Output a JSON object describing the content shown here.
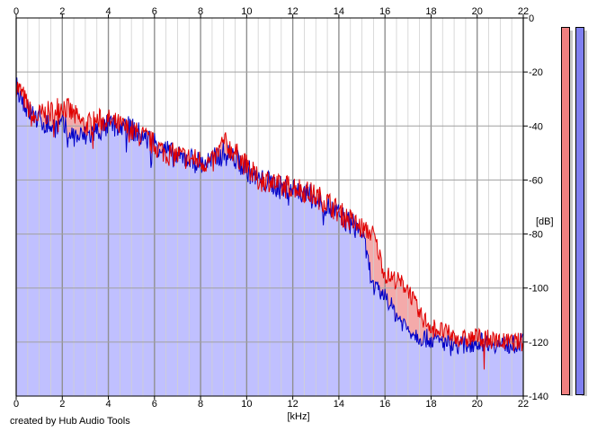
{
  "credit": "created by Hub Audio Tools",
  "chart_data": {
    "type": "area",
    "xlabel": "[kHz]",
    "ylabel": "[dB]",
    "xlim": [
      0,
      22
    ],
    "ylim": [
      -140,
      0
    ],
    "x_ticks": [
      "0",
      "2",
      "4",
      "6",
      "8",
      "10",
      "12",
      "14",
      "16",
      "18",
      "20",
      "22"
    ],
    "y_ticks": [
      "0",
      "-20",
      "-40",
      "-60",
      "-80",
      "-100",
      "-120",
      "-140"
    ],
    "grid": true,
    "series": [
      {
        "color": "#e00000",
        "fill": "#f4aaaa",
        "x": [
          0,
          0.25,
          0.5,
          0.75,
          1,
          1.5,
          2,
          2.5,
          3,
          3.5,
          4,
          4.5,
          5,
          5.5,
          6,
          6.5,
          7,
          7.5,
          8,
          8.5,
          9,
          9.5,
          10,
          10.5,
          11,
          11.5,
          12,
          12.5,
          13,
          13.5,
          14,
          14.5,
          15,
          15.5,
          16,
          16.5,
          17,
          17.5,
          18,
          18.5,
          19,
          19.5,
          20,
          20.5,
          21,
          21.5,
          22
        ],
        "values": [
          -25,
          -28,
          -33,
          -38,
          -36,
          -35,
          -32,
          -36,
          -40,
          -38,
          -38,
          -40,
          -42,
          -44,
          -47,
          -50,
          -51,
          -52,
          -53,
          -54,
          -46,
          -50,
          -55,
          -60,
          -60,
          -63,
          -62,
          -64,
          -66,
          -68,
          -72,
          -75,
          -78,
          -80,
          -95,
          -97,
          -100,
          -110,
          -114,
          -116,
          -118,
          -119,
          -118,
          -119,
          -120,
          -120,
          -120
        ]
      },
      {
        "color": "#0000c8",
        "fill": "#c0c0ff",
        "x": [
          0,
          0.25,
          0.5,
          0.75,
          1,
          1.5,
          2,
          2.5,
          3,
          3.5,
          4,
          4.5,
          5,
          5.5,
          6,
          6.5,
          7,
          7.5,
          8,
          8.5,
          9,
          9.5,
          10,
          10.5,
          11,
          11.5,
          12,
          12.5,
          13,
          13.5,
          14,
          14.5,
          15,
          15.5,
          16,
          16.5,
          17,
          17.5,
          18,
          18.5,
          19,
          19.5,
          20,
          20.5,
          21,
          21.5,
          22
        ],
        "values": [
          -24,
          -30,
          -34,
          -36,
          -38,
          -40,
          -40,
          -44,
          -44,
          -42,
          -40,
          -40,
          -41,
          -44,
          -46,
          -49,
          -52,
          -52,
          -54,
          -53,
          -50,
          -52,
          -56,
          -60,
          -61,
          -63,
          -63,
          -65,
          -67,
          -70,
          -73,
          -76,
          -79,
          -100,
          -103,
          -110,
          -115,
          -118,
          -119,
          -120,
          -121,
          -121,
          -120,
          -120,
          -121,
          -121,
          -120
        ]
      }
    ]
  },
  "meters": {
    "left_color": "#f08080",
    "right_color": "#8080f0"
  }
}
